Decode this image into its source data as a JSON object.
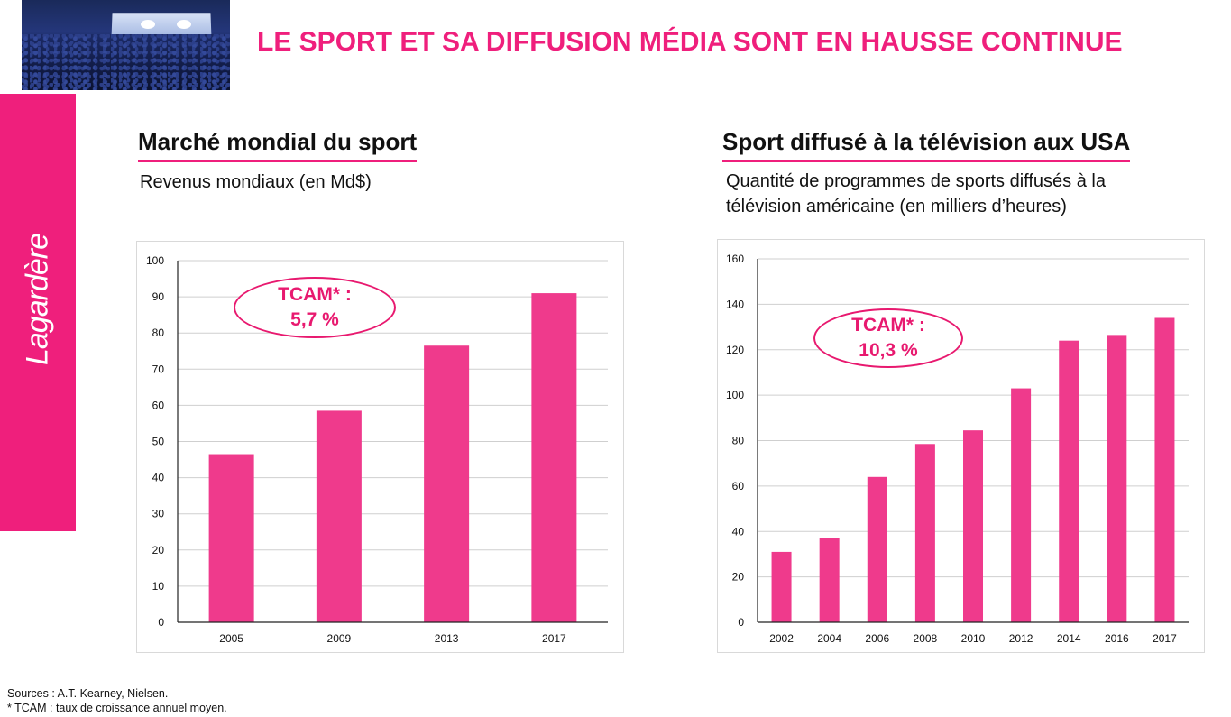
{
  "main_title": "LE SPORT ET SA DIFFUSION MÉDIA SONT EN HAUSSE CONTINUE",
  "brand": {
    "logo_text": "Lagardère",
    "color": "#ef1f7c"
  },
  "left": {
    "title": "Marché mondial du sport",
    "subtitle": "Revenus mondiaux (en Md$)",
    "tcam_line1": "TCAM* :",
    "tcam_line2": "5,7 %"
  },
  "right": {
    "title": "Sport diffusé à la télévision aux USA",
    "subtitle_line1": "Quantité de programmes de sports diffusés à la",
    "subtitle_line2": "télévision américaine (en milliers d’heures)",
    "tcam_line1": "TCAM* :",
    "tcam_line2": "10,3 %"
  },
  "footer": {
    "sources": "Sources : A.T. Kearney, Nielsen.",
    "note": "* TCAM : taux de croissance annuel moyen."
  },
  "chart_data": [
    {
      "type": "bar",
      "title": "Marché mondial du sport",
      "ylabel": "Revenus mondiaux (en Md$)",
      "categories": [
        "2005",
        "2009",
        "2013",
        "2017"
      ],
      "values": [
        46.5,
        58.5,
        76.5,
        91
      ],
      "ylim": [
        0,
        100
      ],
      "yticks": [
        0,
        10,
        20,
        30,
        40,
        50,
        60,
        70,
        80,
        90,
        100
      ],
      "grid": true,
      "bar_color": "#ef3a8c"
    },
    {
      "type": "bar",
      "title": "Sport diffusé à la télévision aux USA",
      "ylabel": "Quantité de programmes de sports diffusés à la télévision américaine (en milliers d’heures)",
      "categories": [
        "2002",
        "2004",
        "2006",
        "2008",
        "2010",
        "2012",
        "2014",
        "2016",
        "2017"
      ],
      "values": [
        31,
        37,
        64,
        78.5,
        84.5,
        103,
        124,
        126.5,
        134
      ],
      "ylim": [
        0,
        160
      ],
      "yticks": [
        0,
        20,
        40,
        60,
        80,
        100,
        120,
        140,
        160
      ],
      "grid": true,
      "bar_color": "#ef3a8c"
    }
  ]
}
